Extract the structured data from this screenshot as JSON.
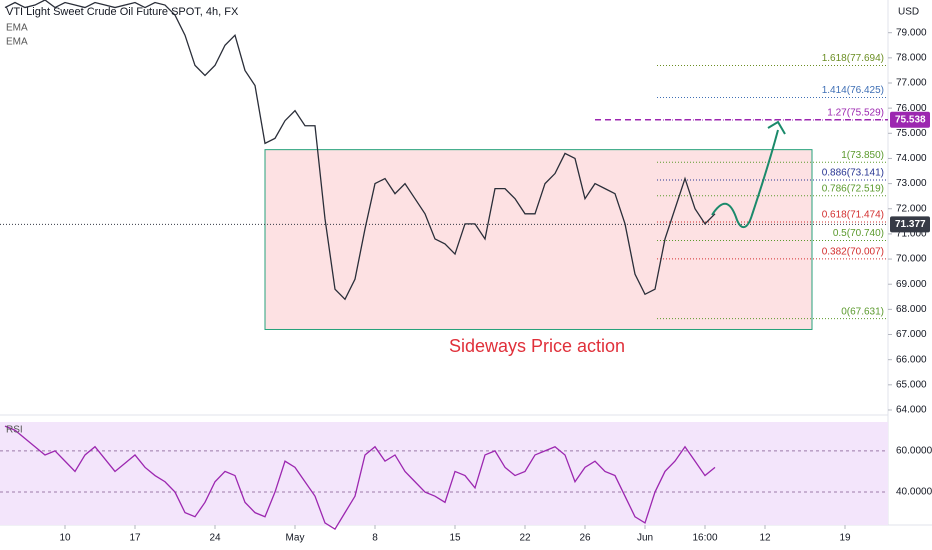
{
  "chart_data": [
    {
      "type": "line",
      "title": "VTI Light Sweet Crude Oil Future SPOT, 4h, FX",
      "indicators": [
        "EMA",
        "EMA"
      ],
      "ylabel": "USD",
      "annotation": "Sideways Price action",
      "categories": [
        null,
        null,
        null,
        null,
        null,
        null,
        "10",
        null,
        null,
        null,
        null,
        null,
        null,
        "17",
        null,
        null,
        null,
        null,
        null,
        null,
        null,
        "24",
        null,
        null,
        null,
        null,
        null,
        null,
        null,
        "May",
        null,
        null,
        null,
        null,
        null,
        null,
        null,
        "8",
        null,
        null,
        null,
        null,
        null,
        null,
        null,
        "15",
        null,
        null,
        null,
        null,
        null,
        null,
        "22",
        null,
        null,
        null,
        null,
        null,
        "26",
        null,
        null,
        null,
        null,
        null,
        "Jun",
        null,
        null,
        null,
        null,
        null,
        "16:00",
        null,
        null,
        null,
        null,
        null,
        "12",
        null,
        null,
        null,
        null,
        null,
        null,
        null,
        "19"
      ],
      "series": [
        {
          "color": "#2a2e39",
          "values": [
            80.0,
            80.2,
            80.0,
            80.1,
            80.3,
            80.0,
            80.2,
            80.1,
            80.0,
            80.2,
            80.1,
            80.0,
            80.1,
            80.2,
            80.0,
            80.2,
            80.1,
            79.7,
            78.9,
            77.7,
            77.3,
            77.7,
            78.5,
            78.9,
            77.5,
            76.9,
            74.6,
            74.8,
            75.5,
            75.9,
            75.3,
            75.3,
            71.6,
            68.8,
            68.4,
            69.2,
            71.2,
            73.0,
            73.2,
            72.6,
            73.0,
            72.4,
            71.8,
            70.8,
            70.6,
            70.2,
            71.4,
            71.4,
            70.8,
            72.8,
            72.8,
            72.4,
            71.8,
            71.8,
            73.0,
            73.4,
            74.2,
            74.0,
            72.4,
            73.0,
            72.8,
            72.6,
            71.4,
            69.4,
            68.6,
            68.8,
            70.8,
            72.0,
            73.2,
            72.0,
            71.4,
            71.8,
            null,
            null,
            null,
            null,
            null,
            null,
            null,
            null,
            null,
            null,
            null,
            null,
            null
          ]
        }
      ],
      "range_box": [
        67.2,
        74.35
      ],
      "fib_levels": [
        {
          "value": 77.694,
          "label": "1.618(77.694)",
          "color": "#6b8e23"
        },
        {
          "value": 76.425,
          "label": "1.414(76.425)",
          "color": "#3f6fb5"
        },
        {
          "value": 75.529,
          "label": "1.27(75.529)",
          "color": "#9c27b0"
        },
        {
          "value": 73.85,
          "label": "1(73.850)",
          "color": "#5b9a2d"
        },
        {
          "value": 73.141,
          "label": "0.886(73.141)",
          "color": "#283593"
        },
        {
          "value": 72.519,
          "label": "0.786(72.519)",
          "color": "#5b9a2d"
        },
        {
          "value": 71.474,
          "label": "0.618(71.474)",
          "color": "#d32f2f"
        },
        {
          "value": 70.74,
          "label": "0.5(70.740)",
          "color": "#5b9a2d"
        },
        {
          "value": 70.007,
          "label": "0.382(70.007)",
          "color": "#d32f2f"
        },
        {
          "value": 67.631,
          "label": "0(67.631)",
          "color": "#5b9a2d"
        }
      ],
      "price_tags": [
        {
          "value": 75.538,
          "label": "75.538",
          "color": "#9c27b0"
        },
        {
          "value": 71.377,
          "label": "71.377",
          "color": "#363a45"
        }
      ],
      "ylim": [
        63.8,
        80.3
      ],
      "yticks": [
        {
          "value": 64,
          "label": "64.000"
        },
        {
          "value": 65,
          "label": "65.000"
        },
        {
          "value": 66,
          "label": "66.000"
        },
        {
          "value": 67,
          "label": "67.000"
        },
        {
          "value": 68,
          "label": "68.000"
        },
        {
          "value": 69,
          "label": "69.000"
        },
        {
          "value": 70,
          "label": "70.000"
        },
        {
          "value": 71,
          "label": "71.000"
        },
        {
          "value": 72,
          "label": "72.000"
        },
        {
          "value": 73,
          "label": "73.000"
        },
        {
          "value": 74,
          "label": "74.000"
        },
        {
          "value": 75,
          "label": "75.000"
        },
        {
          "value": 76,
          "label": "76.000"
        },
        {
          "value": 77,
          "label": "77.000"
        },
        {
          "value": 78,
          "label": "78.000"
        },
        {
          "value": 79,
          "label": "79.000"
        }
      ]
    },
    {
      "type": "line",
      "title": "RSI",
      "series": [
        {
          "color": "#9c27b0",
          "values": [
            72,
            70,
            66,
            62,
            58,
            60,
            55,
            50,
            58,
            62,
            56,
            50,
            54,
            58,
            52,
            48,
            45,
            40,
            30,
            28,
            35,
            45,
            50,
            48,
            35,
            30,
            28,
            40,
            55,
            52,
            45,
            38,
            25,
            22,
            30,
            38,
            58,
            62,
            55,
            58,
            50,
            45,
            40,
            38,
            35,
            50,
            48,
            42,
            58,
            60,
            52,
            48,
            50,
            58,
            60,
            62,
            58,
            45,
            52,
            55,
            50,
            48,
            38,
            28,
            25,
            40,
            50,
            55,
            62,
            55,
            48,
            52,
            null,
            null,
            null,
            null,
            null,
            null,
            null,
            null,
            null,
            null,
            null,
            null,
            null
          ]
        }
      ],
      "ylim": [
        24,
        74
      ],
      "yticks": [
        {
          "value": 40,
          "label": "40.0000"
        },
        {
          "value": 60,
          "label": "60.0000"
        }
      ]
    }
  ]
}
